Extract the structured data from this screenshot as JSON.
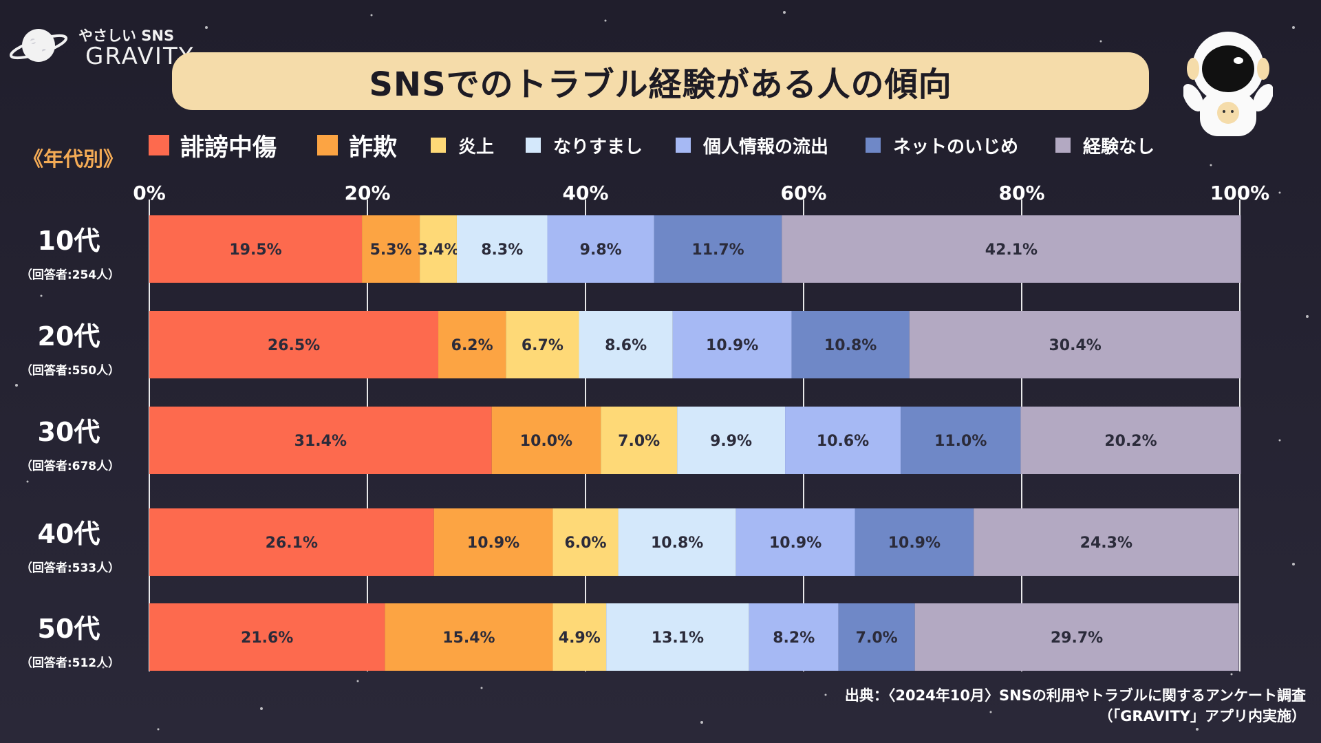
{
  "brand": {
    "tagline": "やさしい SNS",
    "name": "GRAVITY"
  },
  "title": "SNSでのトラブル経験がある人の傾向",
  "section_label": "《年代別》",
  "colors": {
    "background": "#24222f",
    "title_box": "#f5dcaa",
    "section_label": "#f4ab55",
    "series": [
      "#fd6a4e",
      "#fca443",
      "#fed977",
      "#d4e8fb",
      "#a6b9f4",
      "#6f88c7",
      "#b3a9c2"
    ]
  },
  "icons": {
    "logo": "planet-icon",
    "mascot": "astronaut-icon"
  },
  "chart_data": {
    "type": "bar",
    "orientation": "horizontal",
    "stacked": true,
    "categories": [
      "10代",
      "20代",
      "30代",
      "40代",
      "50代"
    ],
    "category_notes": [
      "（回答者:254人）",
      "（回答者:550人）",
      "（回答者:678人）",
      "（回答者:533人）",
      "（回答者:512人）"
    ],
    "xlim": [
      0,
      100
    ],
    "x_ticks": [
      "0%",
      "20%",
      "40%",
      "60%",
      "80%",
      "100%"
    ],
    "grid": true,
    "legend_position": "top",
    "value_suffix": "%",
    "series": [
      {
        "name": "誹謗中傷",
        "values": [
          19.5,
          26.5,
          31.4,
          26.1,
          21.6
        ]
      },
      {
        "name": "詐欺",
        "values": [
          5.3,
          6.2,
          10.0,
          10.9,
          15.4
        ]
      },
      {
        "name": "炎上",
        "values": [
          3.4,
          6.7,
          7.0,
          6.0,
          4.9
        ]
      },
      {
        "name": "なりすまし",
        "values": [
          8.3,
          8.6,
          9.9,
          10.8,
          13.1
        ]
      },
      {
        "name": "個人情報の流出",
        "values": [
          9.8,
          10.9,
          10.6,
          10.9,
          8.2
        ]
      },
      {
        "name": "ネットのいじめ",
        "values": [
          11.7,
          10.8,
          11.0,
          10.9,
          7.0
        ]
      },
      {
        "name": "経験なし",
        "values": [
          42.1,
          30.4,
          20.2,
          24.3,
          29.7
        ]
      }
    ]
  },
  "footer": {
    "source_line1": "出典：〈2024年10月〉SNSの利用やトラブルに関するアンケート調査",
    "source_line2": "（「GRAVITY」アプリ内実施）"
  }
}
